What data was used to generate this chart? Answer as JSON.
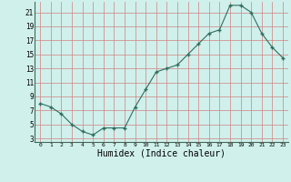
{
  "x": [
    0,
    1,
    2,
    3,
    4,
    5,
    6,
    7,
    8,
    9,
    10,
    11,
    12,
    13,
    14,
    15,
    16,
    17,
    18,
    19,
    20,
    21,
    22,
    23
  ],
  "y": [
    8,
    7.5,
    6.5,
    5,
    4,
    3.5,
    4.5,
    4.5,
    4.5,
    7.5,
    10,
    12.5,
    13,
    13.5,
    15,
    16.5,
    18,
    18.5,
    22,
    22,
    21,
    18,
    16,
    14.5
  ],
  "xlabel": "Humidex (Indice chaleur)",
  "ylim": [
    2.5,
    22.5
  ],
  "xlim": [
    -0.5,
    23.5
  ],
  "yticks": [
    3,
    5,
    7,
    9,
    11,
    13,
    15,
    17,
    19,
    21
  ],
  "xticks": [
    0,
    1,
    2,
    3,
    4,
    5,
    6,
    7,
    8,
    9,
    10,
    11,
    12,
    13,
    14,
    15,
    16,
    17,
    18,
    19,
    20,
    21,
    22,
    23
  ],
  "line_color": "#2e6e5e",
  "marker": "+",
  "bg_color": "#d0f0ec",
  "grid_color": "#d08080",
  "xlabel_fontsize": 7
}
